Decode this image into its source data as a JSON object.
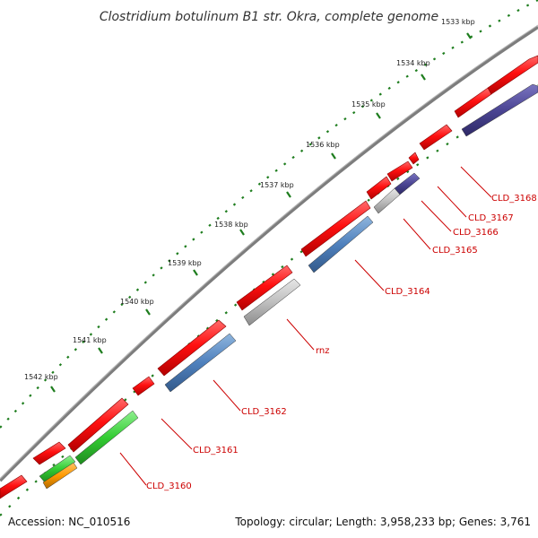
{
  "title": "Clostridium botulinum B1 str. Okra, complete genome",
  "accession": "Accession: NC_010516",
  "summary": "Topology: circular; Length: 3,958,233 bp; Genes: 3,761",
  "colors": {
    "backbone": "#7d7d7d",
    "forward_cds": "#ff0000",
    "reverse_cds": "#4f81bd",
    "grey_feature": "#bfbfbf",
    "purple_feature": "#4b4593",
    "green_feature": "#33cc33",
    "orange_feature": "#ff9900",
    "ruler_ticks": "#1e7d1e",
    "gene_label": "#cc0000"
  },
  "ruler_labels": [
    "1533 kbp",
    "1534 kbp",
    "1535 kbp",
    "1536 kbp",
    "1537 kbp",
    "1538 kbp",
    "1539 kbp",
    "1540 kbp",
    "1541 kbp",
    "1542 kbp"
  ],
  "gene_labels": [
    "CLD_3168",
    "CLD_3167",
    "CLD_3166",
    "CLD_3165",
    "CLD_3164",
    "rnz",
    "CLD_3162",
    "CLD_3161",
    "CLD_3160"
  ]
}
